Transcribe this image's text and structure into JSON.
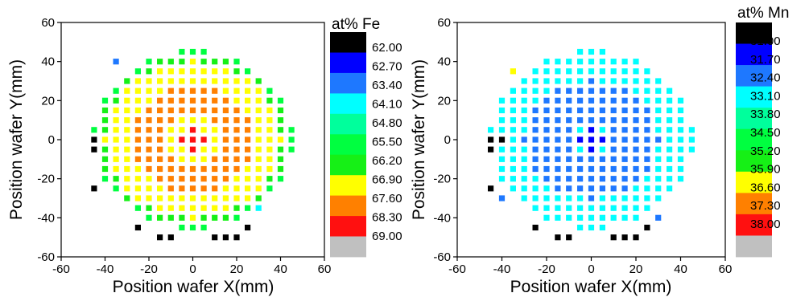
{
  "chart_data": [
    {
      "type": "heatmap",
      "xlabel": "Position wafer X(mm)",
      "ylabel": "Position wafer Y(mm)",
      "xlim": [
        -60,
        60
      ],
      "ylim": [
        -60,
        60
      ],
      "xticks": [
        -60,
        -40,
        -20,
        0,
        20,
        40,
        60
      ],
      "yticks": [
        -60,
        -40,
        -20,
        0,
        20,
        40,
        60
      ],
      "colorbar_title": "at% Fe",
      "colorbar_levels": [
        "62.00",
        "62.70",
        "63.40",
        "64.10",
        "64.80",
        "65.50",
        "66.20",
        "66.90",
        "67.60",
        "68.30",
        "69.00"
      ],
      "colorbar_colors": [
        "#000000",
        "#0000ff",
        "#1e78ff",
        "#00ffff",
        "#00ff9c",
        "#00ff40",
        "#16f016",
        "#ffff00",
        "#ff8000",
        "#ff1010",
        "#c0c0c0"
      ],
      "grid_spacing_mm": 5,
      "wafer_radius_mm": 46,
      "default_bin": 7,
      "rings": [
        [
          0,
          5,
          9
        ],
        [
          13,
          28,
          8
        ],
        [
          30,
          40,
          7
        ],
        [
          40,
          44,
          6
        ]
      ],
      "special_points": [
        [
          -45,
          -5,
          0
        ],
        [
          -45,
          0,
          0
        ],
        [
          -45,
          -25,
          0
        ],
        [
          -35,
          40,
          2
        ],
        [
          -25,
          -45,
          0
        ],
        [
          -15,
          -50,
          0
        ],
        [
          -10,
          -50,
          0
        ],
        [
          10,
          -50,
          0
        ],
        [
          15,
          -50,
          0
        ],
        [
          20,
          -50,
          0
        ],
        [
          25,
          -45,
          0
        ],
        [
          30,
          -35,
          3
        ]
      ]
    },
    {
      "type": "heatmap",
      "xlabel": "Position wafer X(mm)",
      "ylabel": "Position wafer Y(mm)",
      "xlim": [
        -60,
        60
      ],
      "ylim": [
        -60,
        60
      ],
      "xticks": [
        -60,
        -40,
        -20,
        0,
        20,
        40,
        60
      ],
      "yticks": [
        -60,
        -40,
        -20,
        0,
        20,
        40,
        60
      ],
      "colorbar_title": "at% Mn",
      "colorbar_levels": [
        "31.00",
        "31.70",
        "32.40",
        "33.10",
        "33.80",
        "34.50",
        "35.20",
        "35.90",
        "36.60",
        "37.30",
        "38.00"
      ],
      "colorbar_colors": [
        "#000000",
        "#0000ff",
        "#1e78ff",
        "#00ffff",
        "#00ff9c",
        "#00ff40",
        "#16f016",
        "#ffff00",
        "#ff8000",
        "#ff1010",
        "#c0c0c0"
      ],
      "grid_spacing_mm": 5,
      "wafer_radius_mm": 46,
      "default_bin": 3,
      "rings": [
        [
          0,
          5,
          1
        ],
        [
          10,
          30,
          2
        ]
      ],
      "special_points": [
        [
          -45,
          -5,
          0
        ],
        [
          -45,
          0,
          0
        ],
        [
          -40,
          0,
          0
        ],
        [
          -45,
          -25,
          0
        ],
        [
          -35,
          35,
          7
        ],
        [
          -40,
          -30,
          2
        ],
        [
          -25,
          -45,
          0
        ],
        [
          -15,
          -50,
          0
        ],
        [
          -10,
          -50,
          0
        ],
        [
          10,
          -50,
          0
        ],
        [
          15,
          -50,
          0
        ],
        [
          20,
          -50,
          0
        ],
        [
          25,
          -45,
          0
        ],
        [
          30,
          -40,
          2
        ]
      ]
    }
  ]
}
